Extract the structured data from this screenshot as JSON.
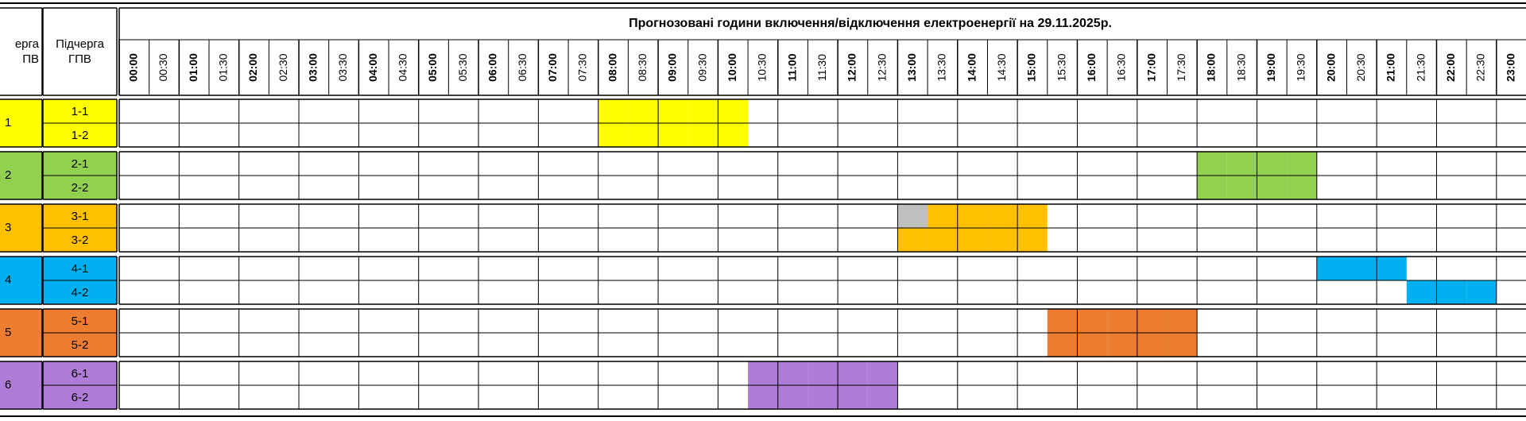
{
  "table": {
    "title": "Прогнозовані години включення/відключення електроенергії на 29.11.2025р.",
    "col_group_header": "ерга\nПВ",
    "col_subgroup_header": "Підчерга\nГПВ",
    "times": [
      "00:00",
      "00:30",
      "01:00",
      "01:30",
      "02:00",
      "02:30",
      "03:00",
      "03:30",
      "04:00",
      "04:30",
      "05:00",
      "05:30",
      "06:00",
      "06:30",
      "07:00",
      "07:30",
      "08:00",
      "08:30",
      "09:00",
      "09:30",
      "10:00",
      "10:30",
      "11:00",
      "11:30",
      "12:00",
      "12:30",
      "13:00",
      "13:30",
      "14:00",
      "14:30",
      "15:00",
      "15:30",
      "16:00",
      "16:30",
      "17:00",
      "17:30",
      "18:00",
      "18:30",
      "19:00",
      "19:30",
      "20:00",
      "20:30",
      "21:00",
      "21:30",
      "22:00",
      "22:30",
      "23:00"
    ],
    "gray_color": "#bfbfbf",
    "groups": [
      {
        "label": "1",
        "color": "#ffff00",
        "subgroups": [
          {
            "label": "1-1",
            "outage_slots": [
              16,
              17,
              18,
              19,
              20
            ]
          },
          {
            "label": "1-2",
            "outage_slots": [
              16,
              17,
              18,
              19,
              20
            ]
          }
        ]
      },
      {
        "label": "2",
        "color": "#92d050",
        "subgroups": [
          {
            "label": "2-1",
            "outage_slots": [
              36,
              37,
              38,
              39
            ]
          },
          {
            "label": "2-2",
            "outage_slots": [
              36,
              37,
              38,
              39
            ]
          }
        ]
      },
      {
        "label": "3",
        "color": "#ffc000",
        "subgroups": [
          {
            "label": "3-1",
            "outage_slots": [
              27,
              28,
              29,
              30
            ],
            "gray_slots": [
              26
            ]
          },
          {
            "label": "3-2",
            "outage_slots": [
              26,
              27,
              28,
              29,
              30
            ]
          }
        ]
      },
      {
        "label": "4",
        "color": "#00b0f0",
        "subgroups": [
          {
            "label": "4-1",
            "outage_slots": [
              40,
              41,
              42
            ]
          },
          {
            "label": "4-2",
            "outage_slots": [
              43,
              44,
              45
            ]
          }
        ]
      },
      {
        "label": "5",
        "color": "#ed7d31",
        "subgroups": [
          {
            "label": "5-1",
            "outage_slots": [
              31,
              32,
              33,
              34,
              35
            ]
          },
          {
            "label": "5-2",
            "outage_slots": [
              31,
              32,
              33,
              34,
              35
            ]
          }
        ]
      },
      {
        "label": "6",
        "color": "#b07cd8",
        "subgroups": [
          {
            "label": "6-1",
            "outage_slots": [
              21,
              22,
              23,
              24,
              25
            ]
          },
          {
            "label": "6-2",
            "outage_slots": [
              21,
              22,
              23,
              24,
              25
            ]
          }
        ]
      }
    ]
  }
}
